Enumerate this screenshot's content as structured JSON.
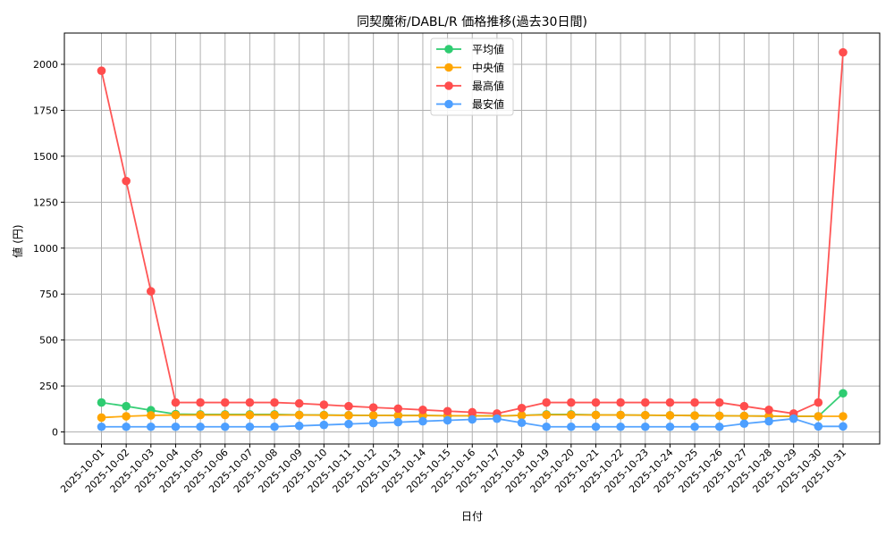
{
  "chart_data": {
    "type": "line",
    "title": "同契魔術/DABL/R 価格推移(過去30日間)",
    "xlabel": "日付",
    "ylabel": "値 (円)",
    "ylim": [
      -70,
      2170
    ],
    "yticks": [
      0,
      250,
      500,
      750,
      1000,
      1250,
      1500,
      1750,
      2000
    ],
    "grid": true,
    "legend_position": "upper center",
    "categories": [
      "2025-10-01",
      "2025-10-02",
      "2025-10-03",
      "2025-10-04",
      "2025-10-05",
      "2025-10-06",
      "2025-10-07",
      "2025-10-08",
      "2025-10-09",
      "2025-10-10",
      "2025-10-11",
      "2025-10-12",
      "2025-10-13",
      "2025-10-14",
      "2025-10-15",
      "2025-10-16",
      "2025-10-17",
      "2025-10-18",
      "2025-10-19",
      "2025-10-20",
      "2025-10-21",
      "2025-10-22",
      "2025-10-23",
      "2025-10-24",
      "2025-10-25",
      "2025-10-26",
      "2025-10-27",
      "2025-10-28",
      "2025-10-29",
      "2025-10-30",
      "2025-10-31"
    ],
    "series": [
      {
        "name": "平均値",
        "color": "#2ecc71",
        "values": [
          160,
          140,
          118,
          97,
          95,
          95,
          95,
          95,
          93,
          92,
          91,
          90,
          90,
          90,
          88,
          88,
          87,
          90,
          95,
          95,
          93,
          92,
          91,
          90,
          89,
          88,
          87,
          86,
          85,
          85,
          210
        ]
      },
      {
        "name": "中央値",
        "color": "#ffa500",
        "values": [
          78,
          85,
          90,
          92,
          92,
          92,
          92,
          92,
          92,
          91,
          90,
          90,
          89,
          89,
          88,
          88,
          87,
          90,
          93,
          93,
          92,
          92,
          91,
          90,
          89,
          88,
          87,
          86,
          85,
          85,
          85
        ]
      },
      {
        "name": "最高値",
        "color": "#ff4d4d",
        "values": [
          1965,
          1365,
          765,
          160,
          160,
          160,
          160,
          160,
          155,
          148,
          140,
          133,
          127,
          120,
          113,
          107,
          100,
          130,
          160,
          160,
          160,
          160,
          160,
          160,
          160,
          160,
          140,
          120,
          100,
          160,
          2065
        ]
      },
      {
        "name": "最安値",
        "color": "#4d9fff",
        "values": [
          28,
          28,
          28,
          28,
          28,
          28,
          28,
          28,
          33,
          38,
          43,
          48,
          53,
          58,
          63,
          68,
          72,
          50,
          28,
          28,
          28,
          28,
          28,
          28,
          28,
          28,
          45,
          58,
          72,
          30,
          30
        ]
      }
    ]
  }
}
